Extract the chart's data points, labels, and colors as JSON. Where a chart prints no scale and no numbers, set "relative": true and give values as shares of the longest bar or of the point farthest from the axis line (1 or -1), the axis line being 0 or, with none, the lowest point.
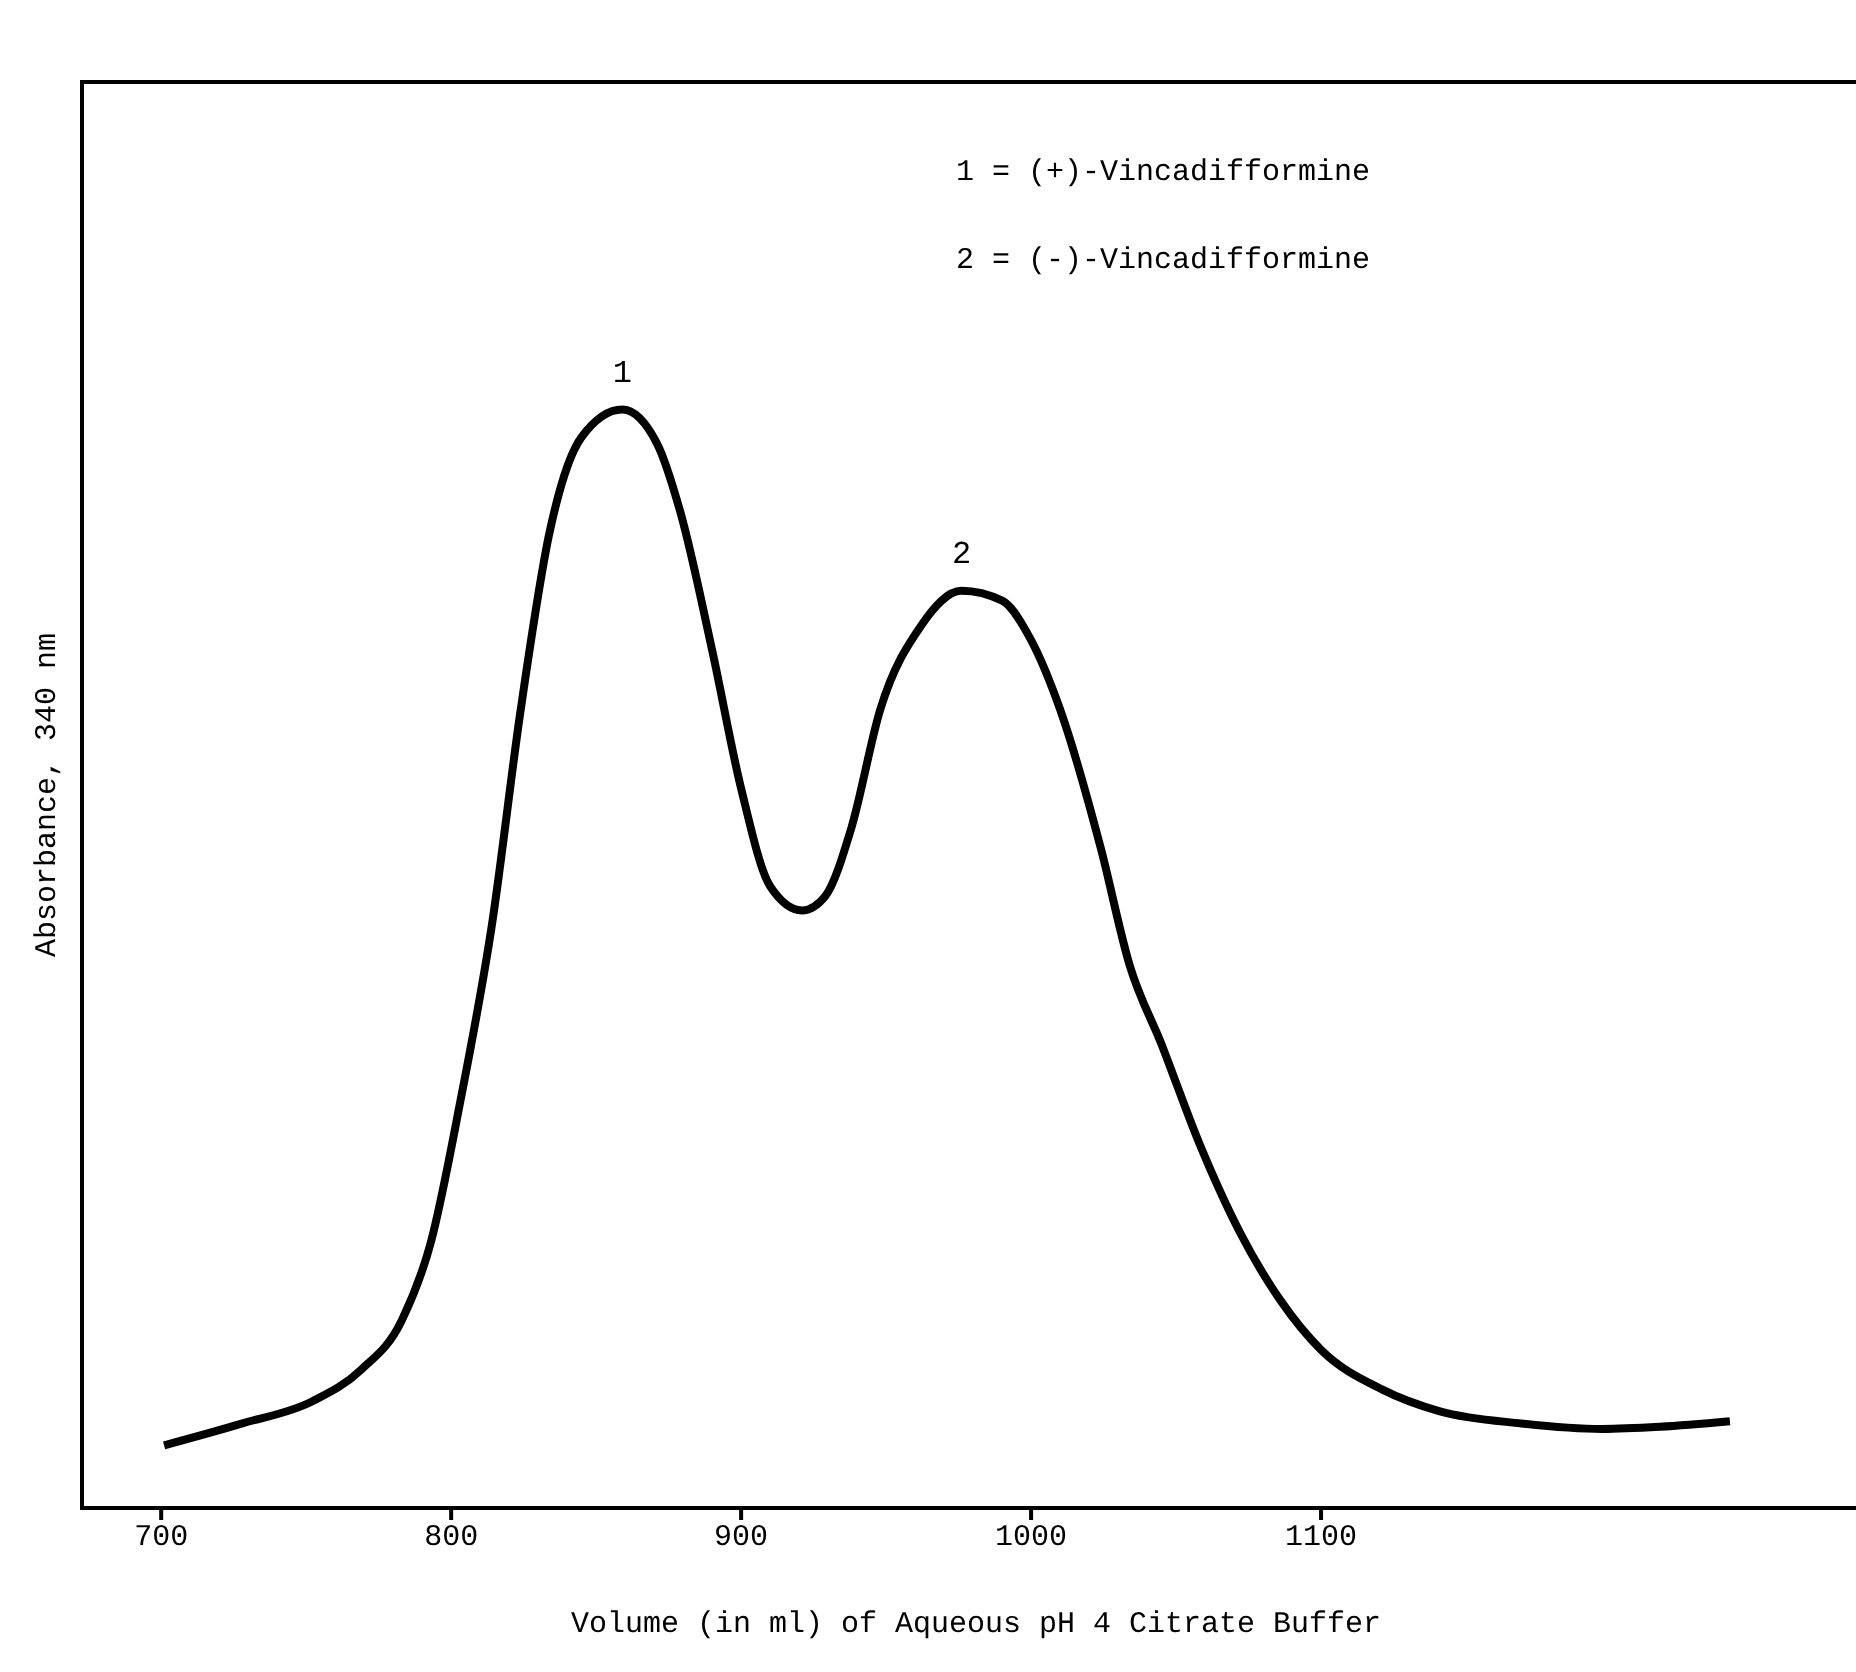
{
  "chart_data": {
    "type": "line",
    "relative": true,
    "xlabel": "Volume (in ml) of Aqueous pH 4 Citrate Buffer",
    "ylabel": "Absorbance, 340 nm",
    "xlim": [
      672,
      1290
    ],
    "xticks": [
      700,
      800,
      900,
      1000,
      1100
    ],
    "annotations": [
      "1 = (+)-Vincadifformine",
      "2 = (-)-Vincadifformine",
      {
        "text": "1",
        "x": 859,
        "y": 1.0
      },
      {
        "text": "2",
        "x": 976,
        "y": 0.835
      }
    ],
    "marker": "none",
    "line_style": "solid",
    "series": [
      {
        "color": "#000000",
        "x": [
          701,
          728,
          752,
          769,
          783,
          793,
          803,
          814,
          824,
          834,
          845,
          859,
          871,
          879,
          890,
          900,
          910,
          921,
          929,
          938,
          948,
          962,
          976,
          990,
          1000,
          1010,
          1024,
          1034,
          1045,
          1058,
          1072,
          1086,
          1100,
          1121,
          1141,
          1169,
          1197,
          1217,
          1241
        ],
        "values": [
          0.057,
          0.077,
          0.097,
          0.126,
          0.171,
          0.242,
          0.368,
          0.53,
          0.727,
          0.889,
          0.975,
          1.0,
          0.969,
          0.907,
          0.781,
          0.655,
          0.566,
          0.544,
          0.557,
          0.619,
          0.727,
          0.803,
          0.835,
          0.826,
          0.79,
          0.727,
          0.601,
          0.494,
          0.422,
          0.332,
          0.251,
          0.189,
          0.144,
          0.108,
          0.088,
          0.077,
          0.072,
          0.074,
          0.079
        ]
      }
    ]
  }
}
